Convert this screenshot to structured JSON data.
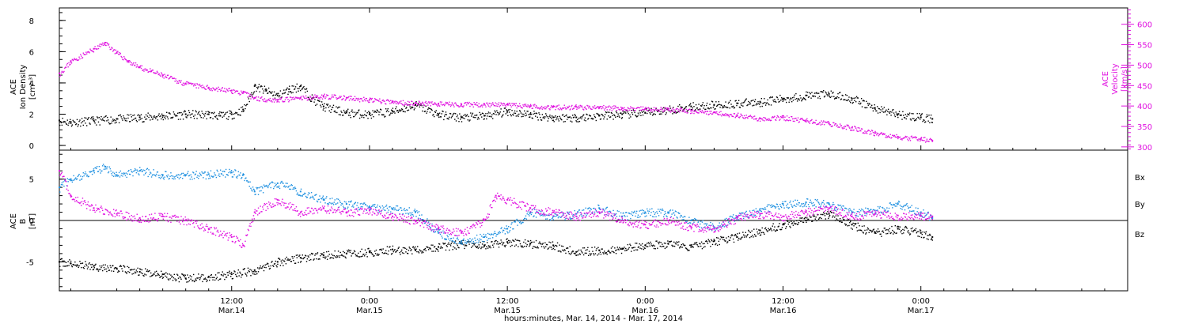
{
  "chart_data": [
    {
      "type": "scatter",
      "panel": "top",
      "title": "",
      "xlabel": "hours:minutes, Mar. 14, 2014 - Mar. 17, 2014",
      "x_unit": "hours since Mar. 14, 2014 00:00",
      "xlim": [
        -3,
        90
      ],
      "x_ticks": [
        {
          "x": 12,
          "time": "12:00",
          "date": "Mar.14"
        },
        {
          "x": 24,
          "time": "0:00",
          "date": "Mar.15"
        },
        {
          "x": 36,
          "time": "12:00",
          "date": "Mar.15"
        },
        {
          "x": 48,
          "time": "0:00",
          "date": "Mar.16"
        },
        {
          "x": 60,
          "time": "12:00",
          "date": "Mar.16"
        },
        {
          "x": 72,
          "time": "0:00",
          "date": "Mar.17"
        }
      ],
      "left_axis": {
        "label_lines": [
          "ACE",
          "Ion Density",
          "[cm⁻³]"
        ],
        "ylim": [
          -0.3,
          8.8
        ],
        "ticks": [
          0,
          2,
          4,
          6,
          8
        ]
      },
      "right_axis": {
        "label_lines": [
          "ACE",
          "Velocity",
          "[km/s]"
        ],
        "ylim": [
          292,
          640
        ],
        "ticks": [
          300,
          350,
          400,
          450,
          500,
          550,
          600
        ],
        "color": "#e010e0"
      },
      "series": [
        {
          "name": "",
          "axis": "left",
          "color": "#000000",
          "points": [
            [
              -3,
              1.6
            ],
            [
              -2,
              1.5
            ],
            [
              0,
              1.6
            ],
            [
              2,
              1.7
            ],
            [
              4,
              1.8
            ],
            [
              6,
              1.9
            ],
            [
              8,
              2.0
            ],
            [
              10,
              2.0
            ],
            [
              11,
              1.9
            ],
            [
              12,
              2.0
            ],
            [
              13,
              2.3
            ],
            [
              14,
              3.8
            ],
            [
              15,
              3.5
            ],
            [
              16,
              3.2
            ],
            [
              17,
              3.6
            ],
            [
              18,
              3.8
            ],
            [
              19,
              3.0
            ],
            [
              20,
              2.5
            ],
            [
              22,
              2.1
            ],
            [
              24,
              2.0
            ],
            [
              26,
              2.2
            ],
            [
              28,
              2.6
            ],
            [
              30,
              2.0
            ],
            [
              32,
              1.8
            ],
            [
              34,
              1.9
            ],
            [
              36,
              2.2
            ],
            [
              38,
              2.0
            ],
            [
              40,
              1.8
            ],
            [
              42,
              1.8
            ],
            [
              44,
              1.9
            ],
            [
              46,
              2.0
            ],
            [
              48,
              2.1
            ],
            [
              50,
              2.3
            ],
            [
              52,
              2.5
            ],
            [
              54,
              2.6
            ],
            [
              56,
              2.7
            ],
            [
              58,
              2.8
            ],
            [
              60,
              3.0
            ],
            [
              62,
              3.2
            ],
            [
              64,
              3.3
            ],
            [
              66,
              3.0
            ],
            [
              68,
              2.4
            ],
            [
              70,
              2.0
            ],
            [
              72,
              1.8
            ],
            [
              73,
              1.7
            ]
          ]
        },
        {
          "name": "",
          "axis": "right",
          "color": "#e010e0",
          "points": [
            [
              -3,
              480
            ],
            [
              -2,
              510
            ],
            [
              0,
              540
            ],
            [
              1,
              555
            ],
            [
              2,
              530
            ],
            [
              3,
              510
            ],
            [
              4,
              495
            ],
            [
              5,
              485
            ],
            [
              6,
              475
            ],
            [
              8,
              455
            ],
            [
              10,
              445
            ],
            [
              12,
              438
            ],
            [
              13,
              432
            ],
            [
              14,
              420
            ],
            [
              16,
              415
            ],
            [
              18,
              420
            ],
            [
              20,
              425
            ],
            [
              22,
              420
            ],
            [
              24,
              415
            ],
            [
              26,
              410
            ],
            [
              28,
              408
            ],
            [
              30,
              406
            ],
            [
              32,
              404
            ],
            [
              34,
              405
            ],
            [
              36,
              403
            ],
            [
              38,
              400
            ],
            [
              40,
              398
            ],
            [
              42,
              398
            ],
            [
              44,
              397
            ],
            [
              46,
              395
            ],
            [
              48,
              393
            ],
            [
              50,
              392
            ],
            [
              52,
              388
            ],
            [
              54,
              385
            ],
            [
              56,
              378
            ],
            [
              58,
              370
            ],
            [
              60,
              372
            ],
            [
              62,
              365
            ],
            [
              64,
              357
            ],
            [
              66,
              347
            ],
            [
              68,
              334
            ],
            [
              70,
              325
            ],
            [
              72,
              320
            ],
            [
              73,
              315
            ]
          ]
        }
      ]
    },
    {
      "type": "scatter",
      "panel": "bottom",
      "title": "",
      "xlabel": "hours:minutes, Mar. 14, 2014 - Mar. 17, 2014",
      "x_unit": "hours since Mar. 14, 2014 00:00",
      "xlim": [
        -3,
        90
      ],
      "left_axis": {
        "label_lines": [
          "ACE",
          "B",
          "[nT]"
        ],
        "ylim": [
          -8.5,
          8.5
        ],
        "ticks": [
          -5,
          0,
          5
        ]
      },
      "legend_placement": "right",
      "series": [
        {
          "name": "Bx",
          "color": "#000000",
          "points": [
            [
              -3,
              -5.0
            ],
            [
              -2,
              -5.2
            ],
            [
              0,
              -5.5
            ],
            [
              2,
              -5.8
            ],
            [
              4,
              -6.2
            ],
            [
              6,
              -6.5
            ],
            [
              8,
              -7.0
            ],
            [
              10,
              -6.8
            ],
            [
              12,
              -6.5
            ],
            [
              14,
              -6.0
            ],
            [
              16,
              -5.0
            ],
            [
              18,
              -4.5
            ],
            [
              20,
              -4.2
            ],
            [
              22,
              -4.0
            ],
            [
              24,
              -3.8
            ],
            [
              26,
              -3.5
            ],
            [
              28,
              -3.6
            ],
            [
              30,
              -3.2
            ],
            [
              32,
              -2.8
            ],
            [
              34,
              -3.0
            ],
            [
              36,
              -2.6
            ],
            [
              38,
              -2.8
            ],
            [
              40,
              -3.0
            ],
            [
              42,
              -3.8
            ],
            [
              44,
              -3.6
            ],
            [
              46,
              -3.4
            ],
            [
              48,
              -3.0
            ],
            [
              50,
              -2.8
            ],
            [
              52,
              -3.2
            ],
            [
              54,
              -2.5
            ],
            [
              56,
              -2.0
            ],
            [
              58,
              -1.2
            ],
            [
              60,
              -0.5
            ],
            [
              62,
              0.0
            ],
            [
              64,
              0.8
            ],
            [
              66,
              -0.5
            ],
            [
              68,
              -1.5
            ],
            [
              70,
              -1.0
            ],
            [
              72,
              -1.5
            ],
            [
              73,
              -2.0
            ]
          ]
        },
        {
          "name": "By",
          "color": "#1e90e0",
          "points": [
            [
              -3,
              4.0
            ],
            [
              -2,
              5.0
            ],
            [
              0,
              6.0
            ],
            [
              1,
              6.5
            ],
            [
              2,
              5.5
            ],
            [
              4,
              6.0
            ],
            [
              6,
              5.5
            ],
            [
              8,
              5.5
            ],
            [
              10,
              5.6
            ],
            [
              12,
              5.8
            ],
            [
              13,
              5.5
            ],
            [
              14,
              3.5
            ],
            [
              16,
              4.5
            ],
            [
              18,
              3.5
            ],
            [
              20,
              2.5
            ],
            [
              22,
              2.0
            ],
            [
              24,
              1.6
            ],
            [
              26,
              1.4
            ],
            [
              28,
              1.0
            ],
            [
              30,
              -1.5
            ],
            [
              32,
              -2.5
            ],
            [
              34,
              -2.0
            ],
            [
              36,
              -1.0
            ],
            [
              38,
              1.0
            ],
            [
              40,
              0.5
            ],
            [
              42,
              0.8
            ],
            [
              44,
              1.5
            ],
            [
              46,
              0.5
            ],
            [
              48,
              1.0
            ],
            [
              50,
              1.0
            ],
            [
              52,
              0.0
            ],
            [
              54,
              -0.8
            ],
            [
              56,
              0.5
            ],
            [
              58,
              1.2
            ],
            [
              60,
              2.0
            ],
            [
              62,
              2.2
            ],
            [
              64,
              2.0
            ],
            [
              66,
              1.0
            ],
            [
              68,
              1.2
            ],
            [
              70,
              2.0
            ],
            [
              72,
              1.0
            ],
            [
              73,
              0.3
            ]
          ]
        },
        {
          "name": "Bz",
          "color": "#e010e0",
          "points": [
            [
              -3,
              6.0
            ],
            [
              -2,
              3.0
            ],
            [
              0,
              1.5
            ],
            [
              2,
              0.8
            ],
            [
              4,
              0.3
            ],
            [
              6,
              0.5
            ],
            [
              8,
              0.0
            ],
            [
              10,
              -1.0
            ],
            [
              12,
              -2.0
            ],
            [
              13,
              -3.0
            ],
            [
              14,
              1.0
            ],
            [
              16,
              2.5
            ],
            [
              18,
              1.0
            ],
            [
              20,
              1.5
            ],
            [
              22,
              1.0
            ],
            [
              24,
              1.2
            ],
            [
              26,
              0.5
            ],
            [
              28,
              0.0
            ],
            [
              30,
              -1.0
            ],
            [
              32,
              -1.5
            ],
            [
              34,
              0.0
            ],
            [
              35,
              3.0
            ],
            [
              36,
              2.5
            ],
            [
              38,
              1.5
            ],
            [
              40,
              1.0
            ],
            [
              42,
              0.5
            ],
            [
              44,
              1.0
            ],
            [
              46,
              0.0
            ],
            [
              48,
              -0.5
            ],
            [
              50,
              0.0
            ],
            [
              52,
              -0.8
            ],
            [
              54,
              -1.0
            ],
            [
              56,
              0.3
            ],
            [
              58,
              0.8
            ],
            [
              60,
              0.5
            ],
            [
              62,
              1.0
            ],
            [
              64,
              1.5
            ],
            [
              66,
              0.5
            ],
            [
              68,
              0.8
            ],
            [
              70,
              0.6
            ],
            [
              72,
              0.6
            ],
            [
              73,
              0.5
            ]
          ]
        }
      ]
    }
  ]
}
